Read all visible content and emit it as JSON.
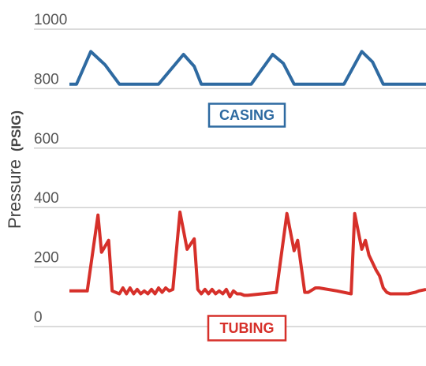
{
  "chart_data": {
    "type": "line",
    "title": "",
    "xlabel": "",
    "ylabel": {
      "text": "Pressure",
      "unit": "(PSIG)"
    },
    "ylim": [
      0,
      1000
    ],
    "yticks": [
      "1000",
      "800",
      "600",
      "400",
      "200",
      "0"
    ],
    "grid": true,
    "legend": "inline labels",
    "x_range": [
      0,
      100
    ],
    "series": [
      {
        "name": "CASING",
        "color": "#2e6aa1",
        "x": [
          0,
          2,
          6,
          10,
          14,
          25,
          32,
          35,
          37,
          51,
          57,
          60,
          63,
          77,
          82,
          85,
          88,
          94,
          100
        ],
        "y": [
          815,
          815,
          925,
          880,
          815,
          815,
          915,
          875,
          815,
          815,
          915,
          885,
          815,
          815,
          925,
          890,
          815,
          815,
          815
        ]
      },
      {
        "name": "TUBING",
        "color": "#d6302a",
        "x": [
          0,
          5,
          8,
          9,
          11,
          12,
          14,
          15,
          16,
          17,
          18,
          19,
          20,
          21,
          22,
          23,
          24,
          25,
          26,
          27,
          28,
          29,
          31,
          33,
          35,
          36,
          37,
          38,
          39,
          40,
          41,
          42,
          43,
          44,
          45,
          46,
          47,
          48,
          49,
          50,
          58,
          61,
          63,
          64,
          66,
          67,
          69,
          70,
          75,
          79,
          80,
          82,
          83,
          84,
          86,
          87,
          88,
          89,
          90,
          92,
          95,
          97,
          98,
          100
        ],
        "y": [
          120,
          120,
          375,
          250,
          290,
          120,
          110,
          130,
          110,
          130,
          110,
          125,
          110,
          120,
          110,
          125,
          110,
          130,
          115,
          130,
          120,
          125,
          385,
          260,
          295,
          125,
          110,
          125,
          110,
          125,
          110,
          120,
          110,
          125,
          100,
          120,
          110,
          110,
          105,
          105,
          115,
          380,
          255,
          290,
          115,
          115,
          130,
          130,
          120,
          110,
          380,
          260,
          290,
          240,
          190,
          170,
          130,
          115,
          110,
          110,
          110,
          115,
          120,
          125
        ]
      }
    ]
  }
}
